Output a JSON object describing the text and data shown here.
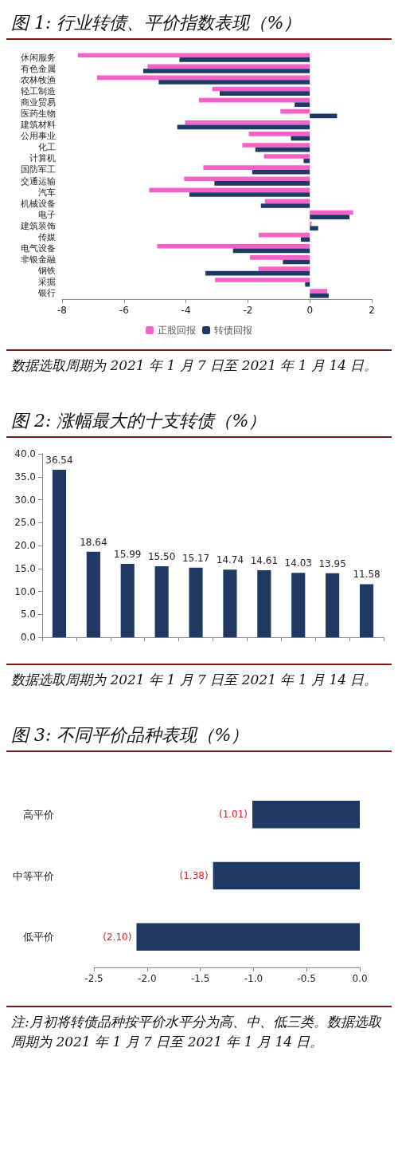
{
  "chart_data": [
    {
      "type": "bar",
      "title": "图 1: 行业转债、平价指数表现（%）",
      "orientation": "horizontal",
      "categories": [
        "休闲服务",
        "有色金属",
        "农林牧渔",
        "轻工制造",
        "商业贸易",
        "医药生物",
        "建筑材料",
        "公用事业",
        "化工",
        "计算机",
        "国防军工",
        "交通运输",
        "汽车",
        "机械设备",
        "电子",
        "建筑装饰",
        "传媒",
        "电气设备",
        "非银金融",
        "钢铁",
        "采掘",
        "银行"
      ],
      "series": [
        {
          "name": "正股回报",
          "color": "#f462c8",
          "values": [
            -7.49,
            -5.24,
            -6.87,
            -3.15,
            -3.58,
            -0.95,
            -4.03,
            -1.97,
            -2.18,
            -1.48,
            -3.44,
            -4.06,
            -5.19,
            -1.45,
            1.4,
            0.06,
            -1.65,
            -4.93,
            -1.93,
            -1.66,
            -3.06,
            0.56
          ]
        },
        {
          "name": "转债回报",
          "color": "#1f3864",
          "values": [
            -4.21,
            -5.38,
            -4.88,
            -2.91,
            -0.49,
            0.88,
            -4.28,
            -0.61,
            -1.76,
            -0.2,
            -1.86,
            -3.08,
            -3.89,
            -1.58,
            1.28,
            0.27,
            -0.29,
            -2.48,
            -0.87,
            -3.37,
            -0.15,
            0.61
          ]
        }
      ],
      "xlim": [
        -8,
        2
      ],
      "xticks": [
        -8,
        -6,
        -4,
        -2,
        0,
        2
      ],
      "grid": false,
      "legend": "bottom",
      "annotations": [
        "数据选取周期为 2021 年 1 月 7 日至 2021 年 1 月 14 日。"
      ]
    },
    {
      "type": "bar",
      "title": "图 2: 涨幅最大的十支转债（%）",
      "categories": [
        null,
        null,
        null,
        null,
        null,
        null,
        null,
        null,
        null,
        null
      ],
      "series": [
        {
          "color": "#1f3864",
          "values": [
            36.54,
            18.64,
            15.99,
            15.5,
            15.17,
            14.74,
            14.61,
            14.03,
            13.95,
            11.58
          ],
          "value_labels": [
            "36.54",
            "18.64",
            "15.99",
            "15.50",
            "15.17",
            "14.74",
            "14.61",
            "14.03",
            "13.95",
            "11.58"
          ]
        }
      ],
      "ylim": [
        0,
        40
      ],
      "yticks": [
        {
          "value": 0,
          "label": "0.0"
        },
        {
          "value": 5,
          "label": "5.0"
        },
        {
          "value": 10,
          "label": "10.0"
        },
        {
          "value": 15,
          "label": "15.0"
        },
        {
          "value": 20,
          "label": "20.0"
        },
        {
          "value": 25,
          "label": "25.0"
        },
        {
          "value": 30,
          "label": "30.0"
        },
        {
          "value": 35,
          "label": "35.0"
        },
        {
          "value": 40,
          "label": "40.0"
        }
      ],
      "grid": false,
      "legend": false,
      "annotations": [
        "数据选取周期为 2021 年 1 月 7 日至 2021 年 1 月 14 日。"
      ]
    },
    {
      "type": "bar",
      "title": "图 3: 不同平价品种表现（%）",
      "orientation": "horizontal",
      "categories": [
        "高平价",
        "中等平价",
        "低平价"
      ],
      "series": [
        {
          "color": "#1f3864",
          "values": [
            -1.01,
            -1.38,
            -2.1
          ],
          "value_labels": [
            "(1.01)",
            "(1.38)",
            "(2.10)"
          ]
        }
      ],
      "xlim": [
        -2.5,
        0
      ],
      "xticks": [
        {
          "value": -2.5,
          "label": "-2.5"
        },
        {
          "value": -2,
          "label": "-2.0"
        },
        {
          "value": -1.5,
          "label": "-1.5"
        },
        {
          "value": -1,
          "label": "-1.0"
        },
        {
          "value": -0.5,
          "label": "-0.5"
        },
        {
          "value": 0,
          "label": "0.0"
        }
      ],
      "grid": false,
      "legend": false,
      "annotations": [
        "注:月初将转债品种按平价水平分为高、中、低三类。数据选取周期为 2021 年 1 月 7 日至 2021 年 1 月 14 日。"
      ]
    }
  ]
}
